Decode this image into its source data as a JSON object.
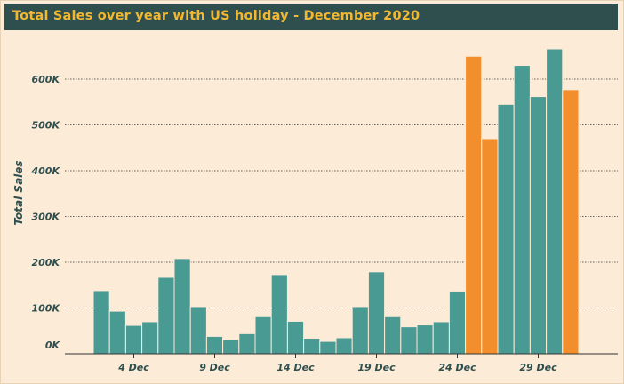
{
  "header": {
    "title": "Total Sales over year with US holiday - December 2020"
  },
  "colors": {
    "background": "#fcebd6",
    "title_bar": "#2f4f4f",
    "title_text": "#f3b830",
    "bar_regular": "#4a9a94",
    "bar_holiday": "#f28e2b"
  },
  "chart_data": {
    "type": "bar",
    "title": "Total Sales over year with US holiday - December 2020",
    "ylabel": "Total Sales",
    "xlabel": "",
    "ylim": [
      0,
      680000
    ],
    "yticks": [
      0,
      100000,
      200000,
      300000,
      400000,
      500000,
      600000
    ],
    "ytick_labels": [
      "0K",
      "100K",
      "200K",
      "300K",
      "400K",
      "500K",
      "600K"
    ],
    "xtick_labels": [
      "4 Dec",
      "9 Dec",
      "14 Dec",
      "19 Dec",
      "24 Dec",
      "29 Dec"
    ],
    "xtick_days": [
      4,
      9,
      14,
      19,
      24,
      29
    ],
    "grid": "horizontal dotted",
    "days": [
      2,
      3,
      4,
      5,
      6,
      7,
      8,
      9,
      10,
      11,
      12,
      13,
      14,
      15,
      16,
      17,
      18,
      19,
      20,
      21,
      22,
      23,
      24,
      25,
      26,
      27,
      28,
      29,
      30,
      31
    ],
    "values": [
      138000,
      93000,
      62000,
      70000,
      167000,
      208000,
      103000,
      38000,
      31000,
      44000,
      81000,
      173000,
      71000,
      34000,
      27000,
      35000,
      103000,
      179000,
      81000,
      59000,
      63000,
      70000,
      137000,
      650000,
      470000,
      545000,
      630000,
      562000,
      666000,
      565000
    ],
    "holiday": [
      false,
      false,
      false,
      false,
      false,
      false,
      false,
      false,
      false,
      false,
      false,
      false,
      false,
      false,
      false,
      false,
      false,
      false,
      false,
      false,
      false,
      false,
      false,
      true,
      true,
      false,
      false,
      false,
      false,
      false
    ],
    "extra_holiday_days": [
      31
    ],
    "extra_holiday_values": [
      577000
    ]
  }
}
